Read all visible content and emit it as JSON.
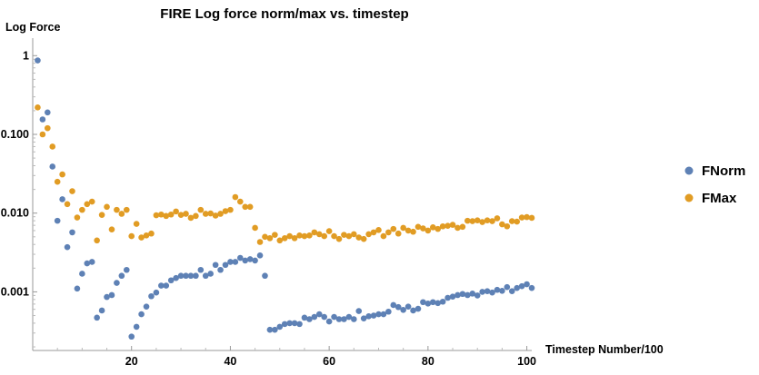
{
  "chart_data": {
    "type": "scatter",
    "title": "FIRE Log force norm/max vs. timestep",
    "xlabel": "Timestep Number/100",
    "ylabel": "Log Force",
    "xlim": [
      0,
      101
    ],
    "ylim": [
      0.00018,
      1.35
    ],
    "yscale": "log",
    "grid": false,
    "legend_position": "right",
    "x_ticks": [
      20,
      40,
      60,
      80,
      100
    ],
    "x_tick_labels": [
      "20",
      "40",
      "60",
      "80",
      "100"
    ],
    "y_ticks": [
      0.001,
      0.01,
      0.1,
      1
    ],
    "y_tick_labels": [
      "0.001",
      "0.010",
      "0.100",
      "1"
    ],
    "series": [
      {
        "name": "FNorm",
        "color": "#5e81b5",
        "points": [
          [
            1,
            0.87
          ],
          [
            2,
            0.155
          ],
          [
            3,
            0.19
          ],
          [
            4,
            0.039
          ],
          [
            5,
            0.008
          ],
          [
            6,
            0.015
          ],
          [
            7,
            0.0037
          ],
          [
            8,
            0.0057
          ],
          [
            9,
            0.0011
          ],
          [
            10,
            0.0017
          ],
          [
            11,
            0.0023
          ],
          [
            12,
            0.0024
          ],
          [
            13,
            0.00047
          ],
          [
            14,
            0.00058
          ],
          [
            15,
            0.00086
          ],
          [
            16,
            0.00091
          ],
          [
            17,
            0.0013
          ],
          [
            18,
            0.0016
          ],
          [
            19,
            0.0019
          ],
          [
            20,
            0.00027
          ],
          [
            21,
            0.00036
          ],
          [
            22,
            0.00052
          ],
          [
            23,
            0.00065
          ],
          [
            24,
            0.00088
          ],
          [
            25,
            0.00098
          ],
          [
            26,
            0.0012
          ],
          [
            27,
            0.0012
          ],
          [
            28,
            0.0014
          ],
          [
            29,
            0.0015
          ],
          [
            30,
            0.0016
          ],
          [
            31,
            0.0016
          ],
          [
            32,
            0.0016
          ],
          [
            33,
            0.0016
          ],
          [
            34,
            0.0019
          ],
          [
            35,
            0.0016
          ],
          [
            36,
            0.0017
          ],
          [
            37,
            0.0022
          ],
          [
            38,
            0.0019
          ],
          [
            39,
            0.0022
          ],
          [
            40,
            0.0024
          ],
          [
            41,
            0.0024
          ],
          [
            42,
            0.0027
          ],
          [
            43,
            0.0025
          ],
          [
            44,
            0.0026
          ],
          [
            45,
            0.0025
          ],
          [
            46,
            0.0029
          ],
          [
            47,
            0.0016
          ],
          [
            48,
            0.00033
          ],
          [
            49,
            0.00033
          ],
          [
            50,
            0.00036
          ],
          [
            51,
            0.00039
          ],
          [
            52,
            0.0004
          ],
          [
            53,
            0.0004
          ],
          [
            54,
            0.00039
          ],
          [
            55,
            0.00047
          ],
          [
            56,
            0.00045
          ],
          [
            57,
            0.00048
          ],
          [
            58,
            0.00052
          ],
          [
            59,
            0.00048
          ],
          [
            60,
            0.00042
          ],
          [
            61,
            0.00048
          ],
          [
            62,
            0.00045
          ],
          [
            63,
            0.00045
          ],
          [
            64,
            0.00048
          ],
          [
            65,
            0.00045
          ],
          [
            66,
            0.00057
          ],
          [
            67,
            0.00046
          ],
          [
            68,
            0.00049
          ],
          [
            69,
            0.0005
          ],
          [
            70,
            0.00052
          ],
          [
            71,
            0.00052
          ],
          [
            72,
            0.00056
          ],
          [
            73,
            0.00068
          ],
          [
            74,
            0.00064
          ],
          [
            75,
            0.00059
          ],
          [
            76,
            0.00065
          ],
          [
            77,
            0.00058
          ],
          [
            78,
            0.00061
          ],
          [
            79,
            0.00074
          ],
          [
            80,
            0.00071
          ],
          [
            81,
            0.00074
          ],
          [
            82,
            0.00072
          ],
          [
            83,
            0.00075
          ],
          [
            84,
            0.00084
          ],
          [
            85,
            0.00087
          ],
          [
            86,
            0.00091
          ],
          [
            87,
            0.00094
          ],
          [
            88,
            0.00091
          ],
          [
            89,
            0.00095
          ],
          [
            90,
            0.0009
          ],
          [
            91,
            0.001
          ],
          [
            92,
            0.00102
          ],
          [
            93,
            0.00098
          ],
          [
            94,
            0.00106
          ],
          [
            95,
            0.00103
          ],
          [
            96,
            0.00115
          ],
          [
            97,
            0.00102
          ],
          [
            98,
            0.00112
          ],
          [
            99,
            0.00118
          ],
          [
            100,
            0.00125
          ],
          [
            101,
            0.00112
          ]
        ]
      },
      {
        "name": "FMax",
        "color": "#e19c24",
        "points": [
          [
            1,
            0.22
          ],
          [
            2,
            0.1
          ],
          [
            3,
            0.12
          ],
          [
            4,
            0.07
          ],
          [
            5,
            0.025
          ],
          [
            6,
            0.031
          ],
          [
            7,
            0.013
          ],
          [
            8,
            0.019
          ],
          [
            9,
            0.0088
          ],
          [
            10,
            0.011
          ],
          [
            11,
            0.013
          ],
          [
            12,
            0.014
          ],
          [
            13,
            0.0045
          ],
          [
            14,
            0.0095
          ],
          [
            15,
            0.012
          ],
          [
            16,
            0.0062
          ],
          [
            17,
            0.011
          ],
          [
            18,
            0.0098
          ],
          [
            19,
            0.011
          ],
          [
            20,
            0.0051
          ],
          [
            21,
            0.0073
          ],
          [
            22,
            0.0049
          ],
          [
            23,
            0.0052
          ],
          [
            24,
            0.0055
          ],
          [
            25,
            0.0094
          ],
          [
            26,
            0.0096
          ],
          [
            27,
            0.0092
          ],
          [
            28,
            0.0096
          ],
          [
            29,
            0.0105
          ],
          [
            30,
            0.0095
          ],
          [
            31,
            0.0098
          ],
          [
            32,
            0.0087
          ],
          [
            33,
            0.0092
          ],
          [
            34,
            0.011
          ],
          [
            35,
            0.0098
          ],
          [
            36,
            0.0099
          ],
          [
            37,
            0.0093
          ],
          [
            38,
            0.0098
          ],
          [
            39,
            0.0106
          ],
          [
            40,
            0.011
          ],
          [
            41,
            0.016
          ],
          [
            42,
            0.014
          ],
          [
            43,
            0.012
          ],
          [
            44,
            0.012
          ],
          [
            45,
            0.0065
          ],
          [
            46,
            0.0043
          ],
          [
            47,
            0.005
          ],
          [
            48,
            0.0048
          ],
          [
            49,
            0.0053
          ],
          [
            50,
            0.0045
          ],
          [
            51,
            0.0048
          ],
          [
            52,
            0.0051
          ],
          [
            53,
            0.0048
          ],
          [
            54,
            0.0052
          ],
          [
            55,
            0.0051
          ],
          [
            56,
            0.0052
          ],
          [
            57,
            0.0057
          ],
          [
            58,
            0.0054
          ],
          [
            59,
            0.0051
          ],
          [
            60,
            0.0059
          ],
          [
            61,
            0.0051
          ],
          [
            62,
            0.0047
          ],
          [
            63,
            0.0053
          ],
          [
            64,
            0.0051
          ],
          [
            65,
            0.0054
          ],
          [
            66,
            0.0049
          ],
          [
            67,
            0.0047
          ],
          [
            68,
            0.0054
          ],
          [
            69,
            0.0057
          ],
          [
            70,
            0.0061
          ],
          [
            71,
            0.0051
          ],
          [
            72,
            0.0057
          ],
          [
            73,
            0.0063
          ],
          [
            74,
            0.0055
          ],
          [
            75,
            0.0065
          ],
          [
            76,
            0.006
          ],
          [
            77,
            0.0058
          ],
          [
            78,
            0.0067
          ],
          [
            79,
            0.0064
          ],
          [
            80,
            0.006
          ],
          [
            81,
            0.0066
          ],
          [
            82,
            0.0063
          ],
          [
            83,
            0.0068
          ],
          [
            84,
            0.0069
          ],
          [
            85,
            0.0071
          ],
          [
            86,
            0.0065
          ],
          [
            87,
            0.0067
          ],
          [
            88,
            0.008
          ],
          [
            89,
            0.0079
          ],
          [
            90,
            0.0081
          ],
          [
            91,
            0.0077
          ],
          [
            92,
            0.0081
          ],
          [
            93,
            0.0079
          ],
          [
            94,
            0.0086
          ],
          [
            95,
            0.0072
          ],
          [
            96,
            0.0068
          ],
          [
            97,
            0.0079
          ],
          [
            98,
            0.0078
          ],
          [
            99,
            0.0088
          ],
          [
            100,
            0.0089
          ],
          [
            101,
            0.0087
          ]
        ]
      }
    ]
  }
}
